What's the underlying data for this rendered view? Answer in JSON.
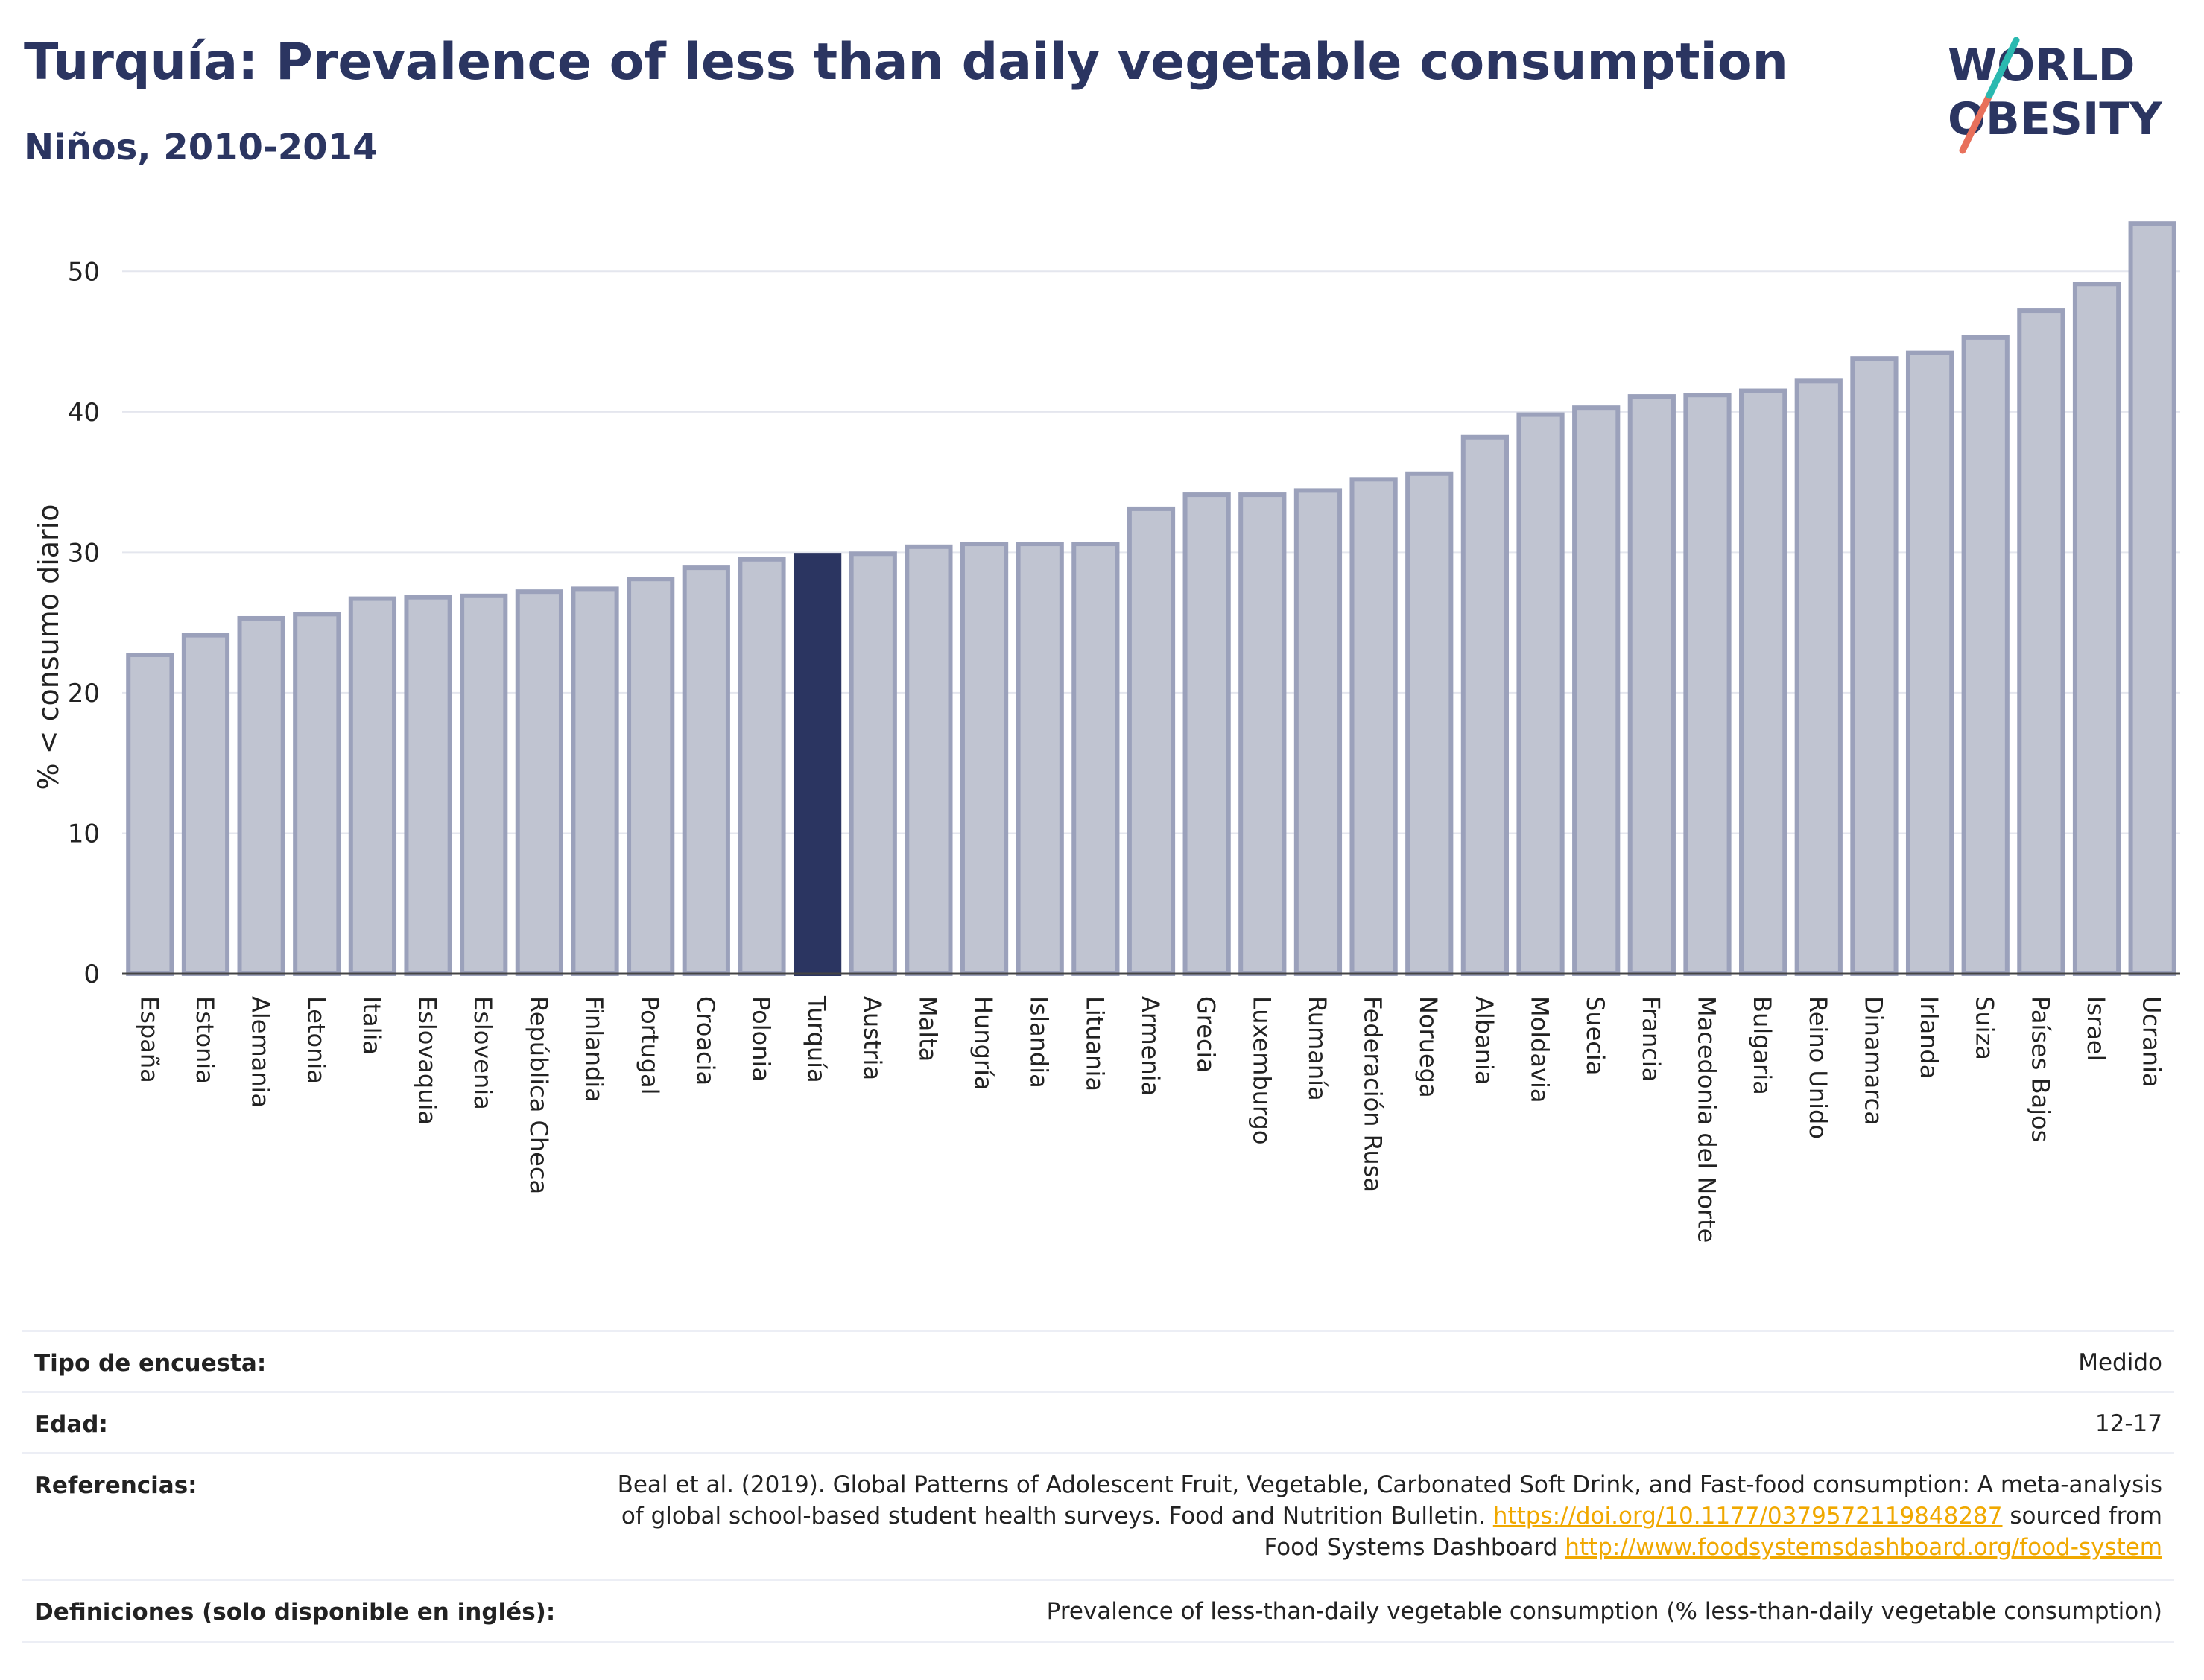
{
  "header": {
    "title": "Turquía: Prevalence of less than daily vegetable consumption",
    "subtitle": "Niños, 2010-2014",
    "logo_line1": "WORLD",
    "logo_line2": "OBESITY"
  },
  "chart_data": {
    "type": "bar",
    "ylabel": "% < consumo diario",
    "xlabel": "",
    "ylim": [
      0,
      55
    ],
    "yticks": [
      0,
      10,
      20,
      30,
      40,
      50
    ],
    "grid": true,
    "highlight": "Turquía",
    "colors": {
      "bar": "#c0c4d1",
      "bar_border": "#9ba1bb",
      "highlight": "#2b3561"
    },
    "categories": [
      "España",
      "Estonia",
      "Alemania",
      "Letonia",
      "Italia",
      "Eslovaquia",
      "Eslovenia",
      "República Checa",
      "Finlandia",
      "Portugal",
      "Croacia",
      "Polonia",
      "Turquía",
      "Austria",
      "Malta",
      "Hungría",
      "Islandia",
      "Lituania",
      "Armenia",
      "Grecia",
      "Luxemburgo",
      "Rumanía",
      "Federación Rusa",
      "Noruega",
      "Albania",
      "Moldavia",
      "Suecia",
      "Francia",
      "Macedonia del Norte",
      "Bulgaria",
      "Reino Unido",
      "Dinamarca",
      "Irlanda",
      "Suiza",
      "Países Bajos",
      "Israel",
      "Ucrania"
    ],
    "values": [
      22.7,
      24.1,
      25.3,
      25.6,
      26.7,
      26.8,
      26.9,
      27.2,
      27.4,
      28.1,
      28.9,
      29.5,
      29.8,
      29.9,
      30.4,
      30.6,
      30.6,
      30.6,
      33.1,
      34.1,
      34.1,
      34.4,
      35.2,
      35.6,
      38.2,
      39.8,
      40.3,
      41.1,
      41.2,
      41.5,
      42.2,
      43.8,
      44.2,
      45.3,
      47.2,
      49.1,
      53.4
    ]
  },
  "info": {
    "survey_type_label": "Tipo de encuesta:",
    "survey_type_value": "Medido",
    "age_label": "Edad:",
    "age_value": "12-17",
    "references_label": "Referencias:",
    "references_line1": "Beal et al. (2019). Global Patterns of Adolescent Fruit, Vegetable, Carbonated Soft Drink, and Fast-food consumption: A meta-analysis",
    "references_line2_pre": "of global school-based student health surveys. Food and Nutrition Bulletin.",
    "references_doi": "https://doi.org/10.1177/0379572119848287",
    "references_line2_post": "sourced from",
    "references_line3_pre": "Food Systems Dashboard",
    "references_url": "http://www.foodsystemsdashboard.org/food-system",
    "definitions_label": "Definiciones (solo disponible en inglés):",
    "definitions_value": "Prevalence of less-than-daily vegetable consumption (% less-than-daily vegetable consumption)"
  }
}
